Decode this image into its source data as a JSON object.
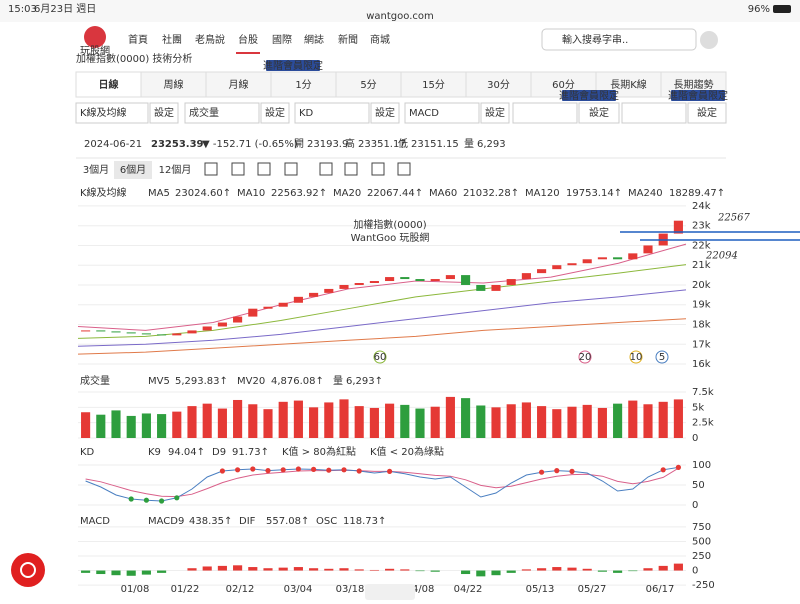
{
  "status_bar": {
    "time": "15:03",
    "date": "6月23日 週日",
    "url": "wantgoo.com",
    "battery": "96%"
  },
  "nav": {
    "logo": "玩股網",
    "items": [
      "首頁",
      "社團",
      "老鳥說",
      "台股",
      "國際",
      "網誌",
      "新聞",
      "商城"
    ],
    "active": 3,
    "search_placeholder": "輸入搜尋字串.."
  },
  "page_title": "加權指數(0000) 技術分析",
  "tabs": [
    "日線",
    "周線",
    "月線",
    "1分",
    "5分",
    "15分",
    "30分",
    "60分",
    "長期K線",
    "長期趨勢"
  ],
  "badge": "進階會員限定",
  "selectors": [
    "K線及均線",
    "成交量",
    "KD",
    "MACD"
  ],
  "setting_button": "設定",
  "quote": {
    "date": "2024-06-21",
    "price": "23253.39",
    "change": "▼ -152.71 (-0.65%)",
    "open_label": "開",
    "open": "23193.9",
    "high_label": "高",
    "high": "23351.17",
    "low_label": "低",
    "low": "23151.15",
    "volume_label": "量",
    "volume": "6,293"
  },
  "ranges": [
    "3個月",
    "6個月",
    "12個月"
  ],
  "price_chart": {
    "title": "加權指數(0000)",
    "watermark": "WantGoo 玩股網",
    "legend_title": "K線及均線",
    "legend": [
      {
        "name": "MA5",
        "value": "23024.60↑",
        "color": "#4a7fc1"
      },
      {
        "name": "MA10",
        "value": "22563.92↑",
        "color": "#e0b020"
      },
      {
        "name": "MA20",
        "value": "22067.44↑",
        "color": "#d9608a"
      },
      {
        "name": "MA60",
        "value": "21032.28↑",
        "color": "#8cb83c"
      },
      {
        "name": "MA120",
        "value": "19753.14↑",
        "color": "#7a6ac8"
      },
      {
        "name": "MA240",
        "value": "18289.47↑",
        "color": "#e07a4a"
      }
    ],
    "ylim": [
      15900,
      24300
    ],
    "yticks": [
      {
        "value": 24000,
        "label": "24k"
      },
      {
        "value": 23000,
        "label": "23k"
      },
      {
        "value": 22000,
        "label": "22k"
      },
      {
        "value": 21000,
        "label": "21k"
      },
      {
        "value": 20000,
        "label": "20k"
      },
      {
        "value": 19000,
        "label": "19k"
      },
      {
        "value": 18000,
        "label": "18k"
      },
      {
        "value": 17000,
        "label": "17k"
      },
      {
        "value": 16000,
        "label": "16k"
      }
    ],
    "x_labels": [
      "01/08",
      "01/22",
      "02/12",
      "03/04",
      "03/18",
      "04/08",
      "04/22",
      "05/13",
      "05/27",
      "06/17"
    ],
    "closes": [
      17700,
      17650,
      17600,
      17550,
      17500,
      17450,
      17550,
      17700,
      17900,
      18100,
      18400,
      18800,
      18900,
      19100,
      19400,
      19600,
      19800,
      20000,
      20100,
      20200,
      20400,
      20300,
      20200,
      20300,
      20500,
      20000,
      19700,
      20000,
      20300,
      20600,
      20800,
      21000,
      21100,
      21300,
      21400,
      21300,
      21600,
      22000,
      22600,
      23253
    ],
    "ma_lines": [
      {
        "name": "MA20",
        "color": "#d9608a",
        "values": [
          17900,
          17700,
          18100,
          19000,
          19800,
          20200,
          20100,
          20400,
          21100,
          22067
        ]
      },
      {
        "name": "MA60",
        "color": "#8cb83c",
        "values": [
          17300,
          17400,
          17700,
          18200,
          18800,
          19400,
          19800,
          20200,
          20600,
          21032
        ]
      },
      {
        "name": "MA120",
        "color": "#7a6ac8",
        "values": [
          16900,
          17000,
          17200,
          17500,
          17900,
          18300,
          18700,
          19100,
          19400,
          19753
        ]
      },
      {
        "name": "MA240",
        "color": "#e07a4a",
        "values": [
          16500,
          16600,
          16800,
          17000,
          17200,
          17400,
          17700,
          17900,
          18100,
          18289
        ]
      }
    ],
    "signals": [
      {
        "label": "60",
        "color": "#8cb83c"
      },
      {
        "label": "20",
        "color": "#d9608a"
      },
      {
        "label": "10",
        "color": "#e0b020"
      },
      {
        "label": "5",
        "color": "#4a7fc1"
      }
    ],
    "annotations": [
      "22567",
      "22094"
    ]
  },
  "volume_chart": {
    "legend_title": "成交量",
    "legend": [
      {
        "name": "MV5",
        "value": "5,293.83↑",
        "color": "#4a7fc1"
      },
      {
        "name": "MV20",
        "value": "4,876.08↑",
        "color": "#d9608a"
      },
      {
        "name": "量",
        "value": "6,293↑",
        "color": "#333"
      }
    ],
    "ylim": [
      0,
      7500
    ],
    "yticks": [
      {
        "value": 7500,
        "label": "7.5k"
      },
      {
        "value": 5000,
        "label": "5k"
      },
      {
        "value": 2500,
        "label": "2.5k"
      },
      0
    ],
    "values": [
      4200,
      3800,
      4500,
      3600,
      4000,
      3900,
      4300,
      5200,
      5600,
      4800,
      6200,
      5500,
      4700,
      5900,
      6100,
      5000,
      5800,
      6300,
      5200,
      4900,
      5600,
      5400,
      4800,
      5100,
      6700,
      6500,
      5300,
      5000,
      5500,
      5800,
      5200,
      4700,
      5100,
      5400,
      4900,
      5600,
      6100,
      5500,
      5900,
      6293
    ]
  },
  "kd_chart": {
    "legend_title": "KD",
    "legend": [
      {
        "name": "K9",
        "value": "94.04↑",
        "color": "#4a7fc1"
      },
      {
        "name": "D9",
        "value": "91.73↑",
        "color": "#d9608a"
      }
    ],
    "notes": [
      "K值 > 80為紅點",
      "K值 < 20為綠點"
    ],
    "ylim": [
      0,
      100
    ],
    "yticks": [
      100,
      50,
      0
    ],
    "k": [
      60,
      45,
      25,
      15,
      12,
      10,
      18,
      40,
      70,
      85,
      88,
      90,
      86,
      88,
      90,
      89,
      87,
      88,
      85,
      80,
      84,
      78,
      70,
      65,
      70,
      45,
      20,
      30,
      55,
      75,
      82,
      86,
      84,
      80,
      60,
      35,
      40,
      70,
      88,
      94
    ],
    "d": [
      65,
      58,
      47,
      36,
      28,
      22,
      21,
      27,
      41,
      56,
      67,
      75,
      79,
      82,
      85,
      86,
      86,
      87,
      86,
      84,
      84,
      82,
      78,
      74,
      72,
      63,
      49,
      43,
      47,
      56,
      65,
      72,
      76,
      77,
      72,
      59,
      53,
      59,
      69,
      92
    ]
  },
  "macd_chart": {
    "legend_title": "MACD",
    "legend": [
      {
        "name": "MACD9",
        "value": "438.35↑",
        "color": "#4a7fc1"
      },
      {
        "name": "DIF",
        "value": "557.08↑",
        "color": "#d9608a"
      },
      {
        "name": "OSC",
        "value": "118.73↑",
        "color": "#333"
      }
    ],
    "ylim": [
      -300,
      800
    ],
    "yticks": [
      750,
      500,
      250,
      0,
      -250
    ],
    "osc": [
      -40,
      -60,
      -80,
      -90,
      -70,
      -40,
      0,
      40,
      70,
      80,
      90,
      60,
      40,
      50,
      60,
      40,
      30,
      40,
      20,
      10,
      30,
      20,
      -10,
      -20,
      0,
      -60,
      -100,
      -80,
      -40,
      20,
      40,
      60,
      50,
      30,
      -20,
      -40,
      -10,
      40,
      80,
      119
    ]
  }
}
